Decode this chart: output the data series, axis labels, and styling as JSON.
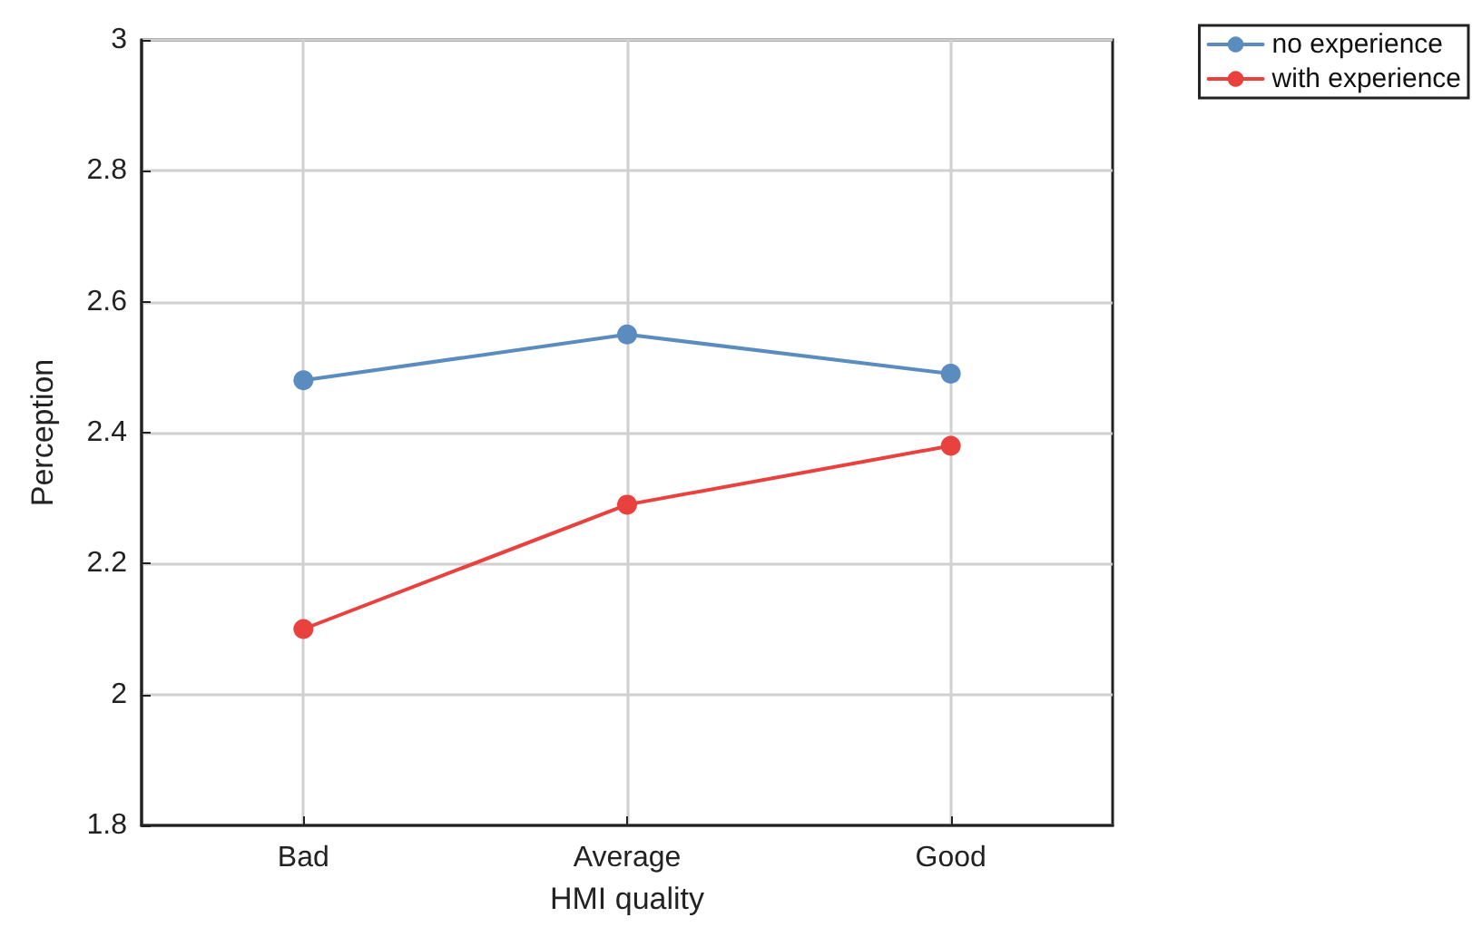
{
  "chart_data": {
    "type": "line",
    "xlabel": "HMI quality",
    "ylabel": "Perception",
    "categories": [
      "Bad",
      "Average",
      "Good"
    ],
    "series": [
      {
        "name": "no experience",
        "color": "#5b8cbf",
        "values": [
          2.48,
          2.55,
          2.49
        ]
      },
      {
        "name": "with experience",
        "color": "#e8413e",
        "values": [
          2.1,
          2.29,
          2.38
        ]
      }
    ],
    "ylim": [
      1.8,
      3
    ],
    "yticks": [
      1.8,
      2,
      2.2,
      2.4,
      2.6,
      2.8,
      3
    ],
    "grid": true,
    "legend": "top right",
    "marker": "circle",
    "line_style": "solid"
  }
}
